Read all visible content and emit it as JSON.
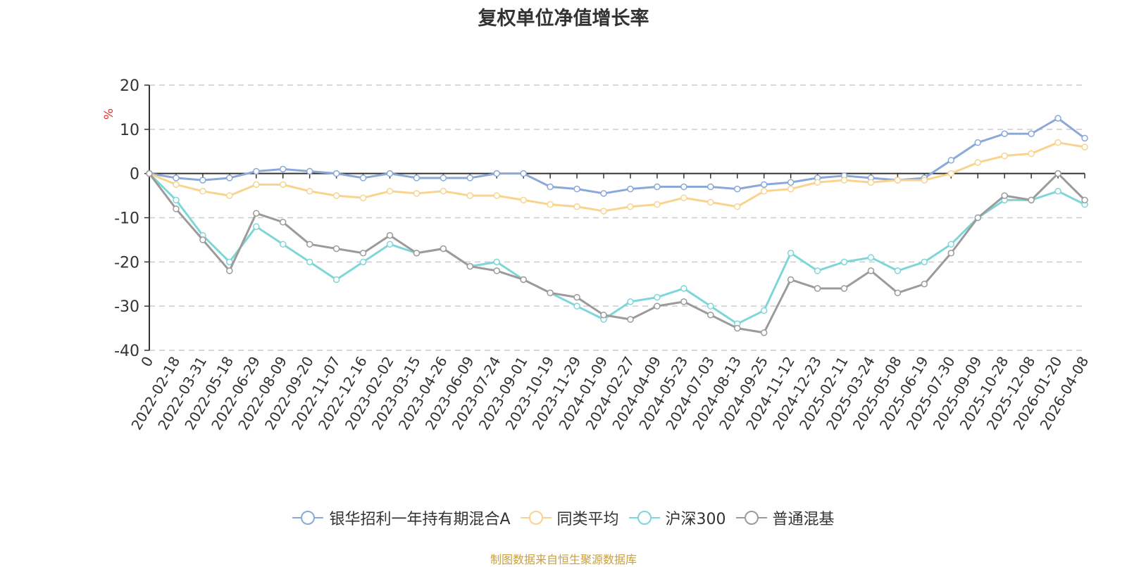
{
  "title": "复权单位净值增长率",
  "source_note": "制图数据来自恒生聚源数据库",
  "chart_data": {
    "type": "line",
    "title": "复权单位净值增长率",
    "ylabel": "%",
    "ylim": [
      -40,
      20
    ],
    "yticks": [
      20,
      10,
      0,
      -10,
      -20,
      -30,
      -40
    ],
    "grid": true,
    "legend_position": "bottom",
    "categories": [
      "0",
      "2022-02-18",
      "2022-03-31",
      "2022-05-18",
      "2022-06-29",
      "2022-08-09",
      "2022-09-20",
      "2022-11-07",
      "2022-12-16",
      "2023-02-02",
      "2023-03-15",
      "2023-04-26",
      "2023-06-09",
      "2023-07-24",
      "2023-09-01",
      "2023-10-19",
      "2023-11-29",
      "2024-01-09",
      "2024-02-27",
      "2024-04-09",
      "2024-05-23",
      "2024-07-03",
      "2024-08-13",
      "2024-09-25",
      "2024-11-12",
      "2024-12-23",
      "2025-02-11",
      "2025-03-24",
      "2025-05-08",
      "2025-06-19",
      "2025-07-30",
      "2025-09-09",
      "2025-10-28",
      "2025-12-08",
      "2026-01-20",
      "2026-04-08"
    ],
    "series": [
      {
        "name": "银华招利一年持有期混合A",
        "color": "#8aa8d8",
        "values": [
          0,
          -1,
          -1.5,
          -1,
          0.5,
          1,
          0.5,
          0,
          -1,
          0,
          -1,
          -1,
          -1,
          0,
          0,
          -3,
          -3.5,
          -4.5,
          -3.5,
          -3,
          -3,
          -3,
          -3.5,
          -2.5,
          -2,
          -1,
          -0.5,
          -1,
          -1.5,
          -1,
          3,
          7,
          9,
          9,
          12.5,
          8
        ]
      },
      {
        "name": "同类平均",
        "color": "#f8d48e",
        "values": [
          0,
          -2.5,
          -4,
          -5,
          -2.5,
          -2.5,
          -4,
          -5,
          -5.5,
          -4,
          -4.5,
          -4,
          -5,
          -5,
          -6,
          -7,
          -7.5,
          -8.5,
          -7.5,
          -7,
          -5.5,
          -6.5,
          -7.5,
          -4,
          -3.5,
          -2,
          -1.5,
          -2,
          -1.5,
          -1.5,
          0,
          2.5,
          4,
          4.5,
          7,
          6
        ]
      },
      {
        "name": "沪深300",
        "color": "#7fd6d8",
        "values": [
          0,
          -6,
          -14,
          -20,
          -12,
          -16,
          -20,
          -24,
          -20,
          -16,
          -18,
          -17,
          -21,
          -20,
          -24,
          -27,
          -30,
          -33,
          -29,
          -28,
          -26,
          -30,
          -34,
          -31,
          -18,
          -22,
          -20,
          -19,
          -22,
          -20,
          -16,
          -10,
          -6,
          -6,
          -4,
          -7
        ]
      },
      {
        "name": "普通混基",
        "color": "#9b9b9b",
        "values": [
          0,
          -8,
          -15,
          -22,
          -9,
          -11,
          -16,
          -17,
          -18,
          -14,
          -18,
          -17,
          -21,
          -22,
          -24,
          -27,
          -28,
          -32,
          -33,
          -30,
          -29,
          -32,
          -35,
          -36,
          -24,
          -26,
          -26,
          -22,
          -27,
          -25,
          -18,
          -10,
          -5,
          -6,
          0,
          -6
        ]
      }
    ]
  }
}
